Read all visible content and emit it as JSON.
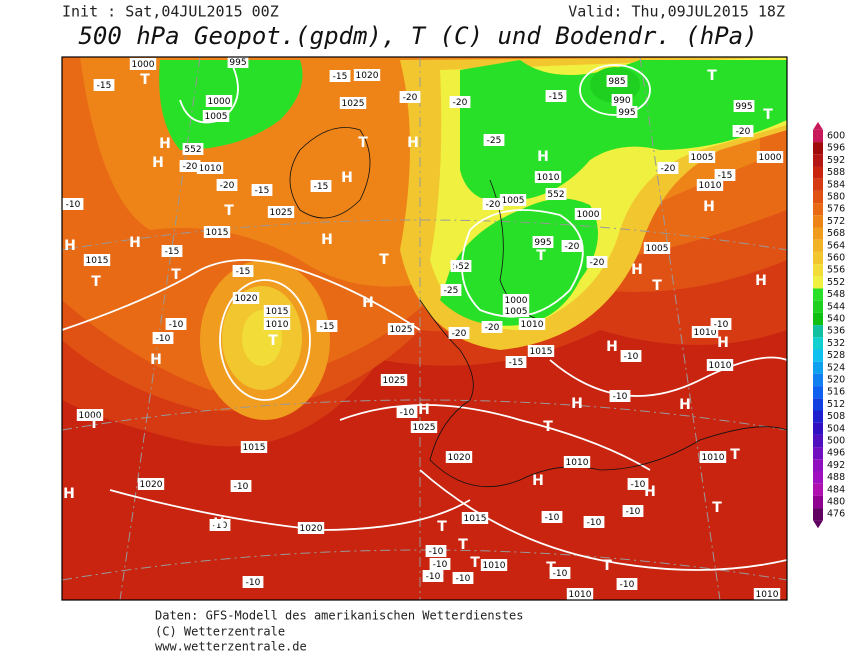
{
  "header": {
    "init": "Init : Sat,04JUL2015 00Z",
    "valid": "Valid: Thu,09JUL2015 18Z",
    "title": "500 hPa Geopot.(gpdm), T (C) und Bodendr. (hPa)"
  },
  "colorbar": {
    "levels": [
      600,
      596,
      592,
      588,
      584,
      580,
      576,
      572,
      568,
      564,
      560,
      556,
      552,
      548,
      544,
      540,
      536,
      532,
      528,
      524,
      520,
      516,
      512,
      508,
      504,
      500,
      496,
      492,
      488,
      484,
      480,
      476
    ],
    "colors": [
      "#c8185a",
      "#a00c0c",
      "#b41616",
      "#c82410",
      "#d63a12",
      "#e05214",
      "#e86a14",
      "#ee8418",
      "#f09c1e",
      "#f2b226",
      "#f2c62e",
      "#f2dc38",
      "#f0f040",
      "#28e028",
      "#20d020",
      "#10c010",
      "#10c0a0",
      "#10d0d0",
      "#10c0f0",
      "#10a0f0",
      "#1080f0",
      "#1060f0",
      "#1040e0",
      "#2020d0",
      "#3010c0",
      "#5010c0",
      "#7010c0",
      "#9010c0",
      "#a010c0",
      "#b010b0",
      "#900090",
      "#600060"
    ]
  },
  "map": {
    "isobar_labels": [
      "1000",
      "995",
      "1020",
      "1025",
      "1000",
      "1005",
      "552",
      "1010",
      "1025",
      "1015",
      "1015",
      "1020",
      "1015",
      "1010",
      "1025",
      "1025",
      "1025",
      "1020",
      "1015",
      "1020",
      "1020",
      "1015",
      "1010",
      "1010",
      "1010",
      "1010",
      "1010",
      "1000",
      "985",
      "990",
      "995",
      "995",
      "1000",
      "1005",
      "1010",
      "1010",
      "1005",
      "1000",
      "995",
      "1005",
      "1000",
      "1005",
      "1010",
      "1015",
      "1010",
      "1010",
      "552",
      "552"
    ],
    "temperature_labels": [
      "-15",
      "-15",
      "-20",
      "-20",
      "-25",
      "-15",
      "-20",
      "-20",
      "-15",
      "-15",
      "-20",
      "-20",
      "-15",
      "-10",
      "-15",
      "-15",
      "-10",
      "-10",
      "-15",
      "-25",
      "-20",
      "-20",
      "-20",
      "-20",
      "-20",
      "-15",
      "-10",
      "-10",
      "-10",
      "-10",
      "-10",
      "-10",
      "-10",
      "-10",
      "-10",
      "-10",
      "-10",
      "-10",
      "-10",
      "-10",
      "-10",
      "-10",
      "-10"
    ],
    "pressure_centers": [
      "T",
      "H",
      "H",
      "T",
      "H",
      "H",
      "T",
      "T",
      "T",
      "H",
      "H",
      "H",
      "H",
      "T",
      "H",
      "T",
      "H",
      "T",
      "T",
      "H",
      "T",
      "H",
      "T",
      "T",
      "H",
      "H",
      "H",
      "H",
      "T",
      "T",
      "H",
      "T",
      "H",
      "H",
      "H",
      "T",
      "T",
      "T",
      "T",
      "T",
      "T",
      "H",
      "H"
    ]
  },
  "footer": {
    "line1": "Daten: GFS-Modell des amerikanischen Wetterdienstes",
    "line2": "(C) Wetterzentrale",
    "line3": "www.wetterzentrale.de"
  }
}
